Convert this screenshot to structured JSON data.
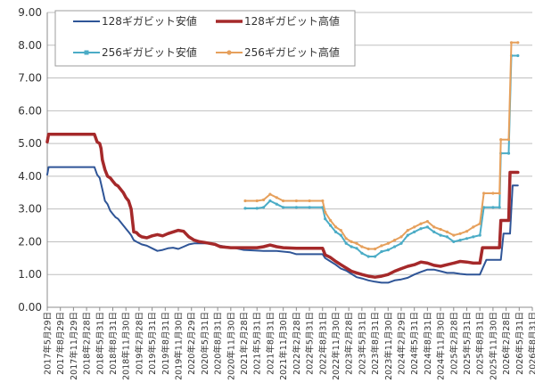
{
  "chart_data": {
    "type": "line",
    "y_ticks": [
      "0.00",
      "1.00",
      "2.00",
      "3.00",
      "4.00",
      "5.00",
      "6.00",
      "7.00",
      "8.00",
      "9.00"
    ],
    "ylim": [
      0,
      9
    ],
    "x_labels": [
      "2017年5月29日",
      "2017年8月29日",
      "2017年11月29日",
      "2018年2月28日",
      "2018年5月31日",
      "2018年8月31日",
      "2018年11月30日",
      "2019年2月28日",
      "2019年5月31日",
      "2019年8月31日",
      "2019年11月30日",
      "2020年2月29日",
      "2020年5月31日",
      "2020年8月31日",
      "2020年11月30日",
      "2021年2月28日",
      "2021年5月31日",
      "2021年8月31日",
      "2021年11月30日",
      "2022年2月28日",
      "2022年5月31日",
      "2022年8月31日",
      "2022年11月30日",
      "2023年2月28日",
      "2023年5月31日",
      "2023年8月31日",
      "2023年11月30日",
      "2024年2月29日",
      "2024年5月31日",
      "2024年8月31日",
      "2024年11月30日",
      "2025年2月28日",
      "2025年5月31日",
      "2025年8月31日",
      "2025年11月30日",
      "2026年2月28日",
      "2026年5月31日",
      "2026年8月31日"
    ],
    "x_range": [
      0,
      37
    ],
    "grid": true,
    "legend_position": "top-left",
    "series": [
      {
        "name": "128ギガビット安値",
        "color": "#2f5597",
        "width": 2,
        "marker": false,
        "points": [
          [
            0,
            4.05
          ],
          [
            0.1,
            4.28
          ],
          [
            1,
            4.28
          ],
          [
            2,
            4.28
          ],
          [
            3,
            4.28
          ],
          [
            3.6,
            4.28
          ],
          [
            3.8,
            4.05
          ],
          [
            4.0,
            3.95
          ],
          [
            4.2,
            3.6
          ],
          [
            4.4,
            3.25
          ],
          [
            4.6,
            3.15
          ],
          [
            4.8,
            2.95
          ],
          [
            5.0,
            2.85
          ],
          [
            5.2,
            2.75
          ],
          [
            5.4,
            2.7
          ],
          [
            5.6,
            2.6
          ],
          [
            5.8,
            2.5
          ],
          [
            6.0,
            2.4
          ],
          [
            6.2,
            2.3
          ],
          [
            6.4,
            2.2
          ],
          [
            6.6,
            2.05
          ],
          [
            6.8,
            2.0
          ],
          [
            7.2,
            1.92
          ],
          [
            7.6,
            1.88
          ],
          [
            8.0,
            1.8
          ],
          [
            8.4,
            1.72
          ],
          [
            8.8,
            1.75
          ],
          [
            9.2,
            1.8
          ],
          [
            9.6,
            1.82
          ],
          [
            10.0,
            1.78
          ],
          [
            10.4,
            1.85
          ],
          [
            10.8,
            1.92
          ],
          [
            11.2,
            1.95
          ],
          [
            12.0,
            1.95
          ],
          [
            12.4,
            1.95
          ],
          [
            12.8,
            1.9
          ],
          [
            13.2,
            1.88
          ],
          [
            13.6,
            1.85
          ],
          [
            14.2,
            1.82
          ],
          [
            15.0,
            1.75
          ],
          [
            16.5,
            1.72
          ],
          [
            17.5,
            1.72
          ],
          [
            18.0,
            1.7
          ],
          [
            18.5,
            1.68
          ],
          [
            19.0,
            1.62
          ],
          [
            21.0,
            1.62
          ],
          [
            21.2,
            1.5
          ],
          [
            21.6,
            1.4
          ],
          [
            22.0,
            1.3
          ],
          [
            22.4,
            1.18
          ],
          [
            22.8,
            1.12
          ],
          [
            23.2,
            1.02
          ],
          [
            23.6,
            0.92
          ],
          [
            24.0,
            0.88
          ],
          [
            24.5,
            0.82
          ],
          [
            25.0,
            0.78
          ],
          [
            25.5,
            0.75
          ],
          [
            26.0,
            0.75
          ],
          [
            26.5,
            0.82
          ],
          [
            27.0,
            0.85
          ],
          [
            27.5,
            0.9
          ],
          [
            28.0,
            1.0
          ],
          [
            28.5,
            1.08
          ],
          [
            29.0,
            1.15
          ],
          [
            29.5,
            1.15
          ],
          [
            30.0,
            1.1
          ],
          [
            30.5,
            1.05
          ],
          [
            31.0,
            1.05
          ],
          [
            31.5,
            1.02
          ],
          [
            32.0,
            1.0
          ],
          [
            32.5,
            1.0
          ],
          [
            33.0,
            1.0
          ],
          [
            33.5,
            1.45
          ],
          [
            34.0,
            1.45
          ],
          [
            34.6,
            1.45
          ],
          [
            34.8,
            2.25
          ],
          [
            35.3,
            2.25
          ],
          [
            35.5,
            3.72
          ],
          [
            35.9,
            3.72
          ]
        ]
      },
      {
        "name": "128ギガビット高値",
        "color": "#a5292a",
        "width": 3.5,
        "marker": false,
        "points": [
          [
            0,
            5.05
          ],
          [
            0.1,
            5.28
          ],
          [
            1,
            5.28
          ],
          [
            2,
            5.28
          ],
          [
            3,
            5.28
          ],
          [
            3.6,
            5.28
          ],
          [
            3.8,
            5.05
          ],
          [
            4.0,
            5.0
          ],
          [
            4.1,
            4.85
          ],
          [
            4.2,
            4.5
          ],
          [
            4.4,
            4.2
          ],
          [
            4.6,
            4.0
          ],
          [
            4.8,
            3.95
          ],
          [
            5.0,
            3.85
          ],
          [
            5.2,
            3.75
          ],
          [
            5.4,
            3.7
          ],
          [
            5.6,
            3.6
          ],
          [
            5.8,
            3.5
          ],
          [
            6.0,
            3.35
          ],
          [
            6.2,
            3.25
          ],
          [
            6.4,
            3.0
          ],
          [
            6.6,
            2.3
          ],
          [
            6.8,
            2.28
          ],
          [
            7.0,
            2.2
          ],
          [
            7.2,
            2.15
          ],
          [
            7.6,
            2.12
          ],
          [
            8.0,
            2.18
          ],
          [
            8.4,
            2.22
          ],
          [
            8.8,
            2.18
          ],
          [
            9.2,
            2.25
          ],
          [
            9.6,
            2.3
          ],
          [
            10.0,
            2.35
          ],
          [
            10.4,
            2.32
          ],
          [
            10.8,
            2.15
          ],
          [
            11.2,
            2.05
          ],
          [
            11.6,
            2.0
          ],
          [
            12.0,
            1.98
          ],
          [
            12.4,
            1.95
          ],
          [
            12.8,
            1.92
          ],
          [
            13.2,
            1.85
          ],
          [
            14.0,
            1.82
          ],
          [
            15.0,
            1.82
          ],
          [
            16.0,
            1.82
          ],
          [
            16.5,
            1.85
          ],
          [
            17.0,
            1.9
          ],
          [
            17.5,
            1.85
          ],
          [
            18.0,
            1.82
          ],
          [
            19.0,
            1.8
          ],
          [
            20.0,
            1.8
          ],
          [
            21.0,
            1.8
          ],
          [
            21.2,
            1.6
          ],
          [
            21.6,
            1.52
          ],
          [
            22.0,
            1.4
          ],
          [
            22.4,
            1.3
          ],
          [
            22.8,
            1.2
          ],
          [
            23.2,
            1.1
          ],
          [
            23.6,
            1.05
          ],
          [
            24.0,
            1.0
          ],
          [
            24.5,
            0.95
          ],
          [
            25.0,
            0.92
          ],
          [
            25.5,
            0.95
          ],
          [
            26.0,
            1.0
          ],
          [
            26.5,
            1.1
          ],
          [
            27.0,
            1.18
          ],
          [
            27.5,
            1.25
          ],
          [
            28.0,
            1.3
          ],
          [
            28.5,
            1.38
          ],
          [
            29.0,
            1.35
          ],
          [
            29.5,
            1.28
          ],
          [
            30.0,
            1.25
          ],
          [
            30.5,
            1.3
          ],
          [
            31.0,
            1.35
          ],
          [
            31.5,
            1.4
          ],
          [
            32.0,
            1.38
          ],
          [
            32.5,
            1.35
          ],
          [
            33.0,
            1.35
          ],
          [
            33.2,
            1.82
          ],
          [
            34.0,
            1.82
          ],
          [
            34.5,
            1.82
          ],
          [
            34.6,
            2.65
          ],
          [
            35.2,
            2.65
          ],
          [
            35.3,
            4.12
          ],
          [
            35.9,
            4.12
          ]
        ]
      },
      {
        "name": "256ギガビット安値",
        "color": "#4bacc6",
        "width": 2,
        "marker": true,
        "points": [
          [
            15.1,
            3.02
          ],
          [
            16.0,
            3.02
          ],
          [
            16.5,
            3.05
          ],
          [
            17.0,
            3.25
          ],
          [
            17.5,
            3.15
          ],
          [
            18.0,
            3.05
          ],
          [
            19.0,
            3.05
          ],
          [
            20.0,
            3.05
          ],
          [
            21.0,
            3.05
          ],
          [
            21.2,
            2.7
          ],
          [
            21.6,
            2.5
          ],
          [
            22.0,
            2.3
          ],
          [
            22.4,
            2.2
          ],
          [
            22.8,
            1.95
          ],
          [
            23.2,
            1.85
          ],
          [
            23.6,
            1.8
          ],
          [
            24.0,
            1.65
          ],
          [
            24.5,
            1.55
          ],
          [
            25.0,
            1.55
          ],
          [
            25.5,
            1.7
          ],
          [
            26.0,
            1.75
          ],
          [
            26.5,
            1.85
          ],
          [
            27.0,
            1.95
          ],
          [
            27.5,
            2.2
          ],
          [
            28.0,
            2.3
          ],
          [
            28.5,
            2.4
          ],
          [
            29.0,
            2.45
          ],
          [
            29.5,
            2.3
          ],
          [
            30.0,
            2.2
          ],
          [
            30.5,
            2.15
          ],
          [
            31.0,
            2.0
          ],
          [
            31.5,
            2.05
          ],
          [
            32.0,
            2.1
          ],
          [
            32.5,
            2.15
          ],
          [
            33.0,
            2.2
          ],
          [
            33.3,
            3.05
          ],
          [
            34.0,
            3.05
          ],
          [
            34.5,
            3.05
          ],
          [
            34.6,
            4.7
          ],
          [
            35.2,
            4.7
          ],
          [
            35.4,
            7.68
          ],
          [
            35.9,
            7.68
          ]
        ]
      },
      {
        "name": "256ギガビット高値",
        "color": "#e6a05c",
        "width": 2,
        "marker": true,
        "points": [
          [
            15.1,
            3.25
          ],
          [
            16.0,
            3.25
          ],
          [
            16.5,
            3.28
          ],
          [
            17.0,
            3.45
          ],
          [
            17.5,
            3.35
          ],
          [
            18.0,
            3.25
          ],
          [
            19.0,
            3.25
          ],
          [
            20.0,
            3.25
          ],
          [
            21.0,
            3.25
          ],
          [
            21.2,
            2.9
          ],
          [
            21.6,
            2.65
          ],
          [
            22.0,
            2.45
          ],
          [
            22.4,
            2.35
          ],
          [
            22.8,
            2.1
          ],
          [
            23.2,
            2.0
          ],
          [
            23.6,
            1.95
          ],
          [
            24.0,
            1.85
          ],
          [
            24.5,
            1.78
          ],
          [
            25.0,
            1.78
          ],
          [
            25.5,
            1.88
          ],
          [
            26.0,
            1.95
          ],
          [
            26.5,
            2.05
          ],
          [
            27.0,
            2.15
          ],
          [
            27.5,
            2.35
          ],
          [
            28.0,
            2.45
          ],
          [
            28.5,
            2.55
          ],
          [
            29.0,
            2.62
          ],
          [
            29.5,
            2.45
          ],
          [
            30.0,
            2.38
          ],
          [
            30.5,
            2.3
          ],
          [
            31.0,
            2.2
          ],
          [
            31.5,
            2.25
          ],
          [
            32.0,
            2.32
          ],
          [
            32.5,
            2.45
          ],
          [
            33.0,
            2.55
          ],
          [
            33.3,
            3.48
          ],
          [
            34.0,
            3.48
          ],
          [
            34.5,
            3.48
          ],
          [
            34.6,
            5.12
          ],
          [
            35.2,
            5.12
          ],
          [
            35.4,
            8.08
          ],
          [
            35.9,
            8.08
          ]
        ]
      }
    ]
  }
}
